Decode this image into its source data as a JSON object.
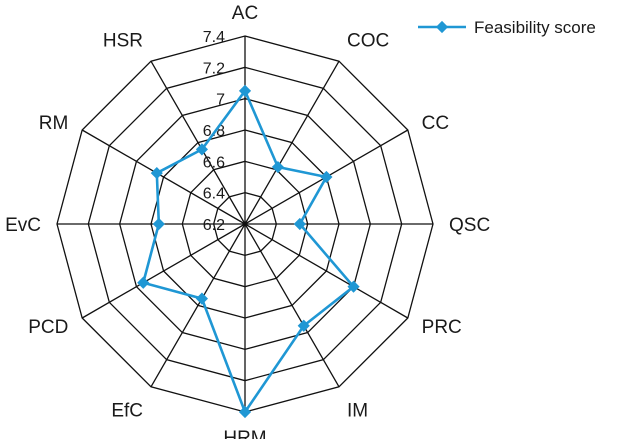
{
  "chart_data": {
    "type": "radar",
    "title": "",
    "axes": [
      "AC",
      "COC",
      "CC",
      "QSC",
      "PRC",
      "IM",
      "HRM",
      "EfC",
      "PCD",
      "EvC",
      "RM",
      "HSR"
    ],
    "series": [
      {
        "name": "Feasibility score",
        "values": [
          7.05,
          6.62,
          6.8,
          6.55,
          7.0,
          6.95,
          7.4,
          6.75,
          6.95,
          6.75,
          6.85,
          6.75
        ],
        "color": "#1f97d4",
        "marker": "diamond"
      }
    ],
    "rlim": [
      6.2,
      7.4
    ],
    "ticks": [
      "6.2",
      "6.4",
      "6.6",
      "6.8",
      "7",
      "7.2",
      "7.4"
    ],
    "grid": true,
    "grid_color": "#111111",
    "legend": {
      "position": "top-right"
    }
  }
}
